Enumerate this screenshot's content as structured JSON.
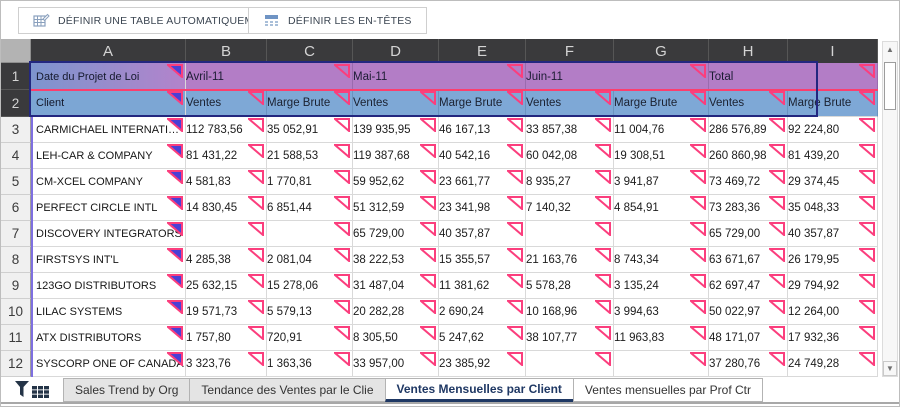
{
  "toolbar": {
    "define_table_label": "DÉFINIR UNE TABLE AUTOMATIQUEMENT",
    "define_headers_label": "DÉFINIR LES EN-TÊTES"
  },
  "sheet": {
    "column_letters": [
      "A",
      "B",
      "C",
      "D",
      "E",
      "F",
      "G",
      "H",
      "I"
    ],
    "row_numbers": [
      "1",
      "2",
      "3",
      "4",
      "5",
      "6",
      "7",
      "8",
      "9",
      "10",
      "11",
      "12"
    ],
    "header_row_1": {
      "a": "Date du Projet de Loi",
      "groups": [
        "Avril-11",
        "Mai-11",
        "Juin-11",
        "Total"
      ]
    },
    "header_row_2": {
      "a": "Client",
      "cols": [
        "Ventes",
        "Marge Brute",
        "Ventes",
        "Marge Brute",
        "Ventes",
        "Marge Brute",
        "Ventes",
        "Marge Brute"
      ]
    },
    "data_rows": [
      {
        "name": "CARMICHAEL INTERNATI…",
        "values": [
          "112 783,56",
          "35 052,91",
          "139 935,95",
          "46 167,13",
          "33 857,38",
          "11 004,76",
          "286 576,89",
          "92 224,80"
        ]
      },
      {
        "name": "LEH-CAR & COMPANY",
        "values": [
          "81 431,22",
          "21 588,53",
          "119 387,68",
          "40 542,16",
          "60 042,08",
          "19 308,51",
          "260 860,98",
          "81 439,20"
        ]
      },
      {
        "name": "CM-XCEL COMPANY",
        "values": [
          "4 581,83",
          "1 770,81",
          "59 952,62",
          "23 661,77",
          "8 935,27",
          "3 941,87",
          "73 469,72",
          "29 374,45"
        ]
      },
      {
        "name": "PERFECT CIRCLE INTL",
        "values": [
          "14 830,45",
          "6 851,44",
          "51 312,59",
          "23 341,98",
          "7 140,32",
          "4 854,91",
          "73 283,36",
          "35 048,33"
        ]
      },
      {
        "name": "DISCOVERY INTEGRATORS",
        "values": [
          "",
          "",
          "65 729,00",
          "40 357,87",
          "",
          "",
          "65 729,00",
          "40 357,87"
        ]
      },
      {
        "name": "FIRSTSYS INT'L",
        "values": [
          "4 285,38",
          "2 081,04",
          "38 222,53",
          "15 355,57",
          "21 163,76",
          "8 743,34",
          "63 671,67",
          "26 179,95"
        ]
      },
      {
        "name": "123GO DISTRIBUTORS",
        "values": [
          "25 632,15",
          "15 278,06",
          "31 487,04",
          "11 381,62",
          "5 578,28",
          "3 135,24",
          "62 697,47",
          "29 794,92"
        ]
      },
      {
        "name": "LILAC SYSTEMS",
        "values": [
          "19 571,73",
          "5 579,13",
          "20 282,28",
          "2 690,24",
          "10 168,96",
          "3 994,63",
          "50 022,97",
          "12 264,00"
        ]
      },
      {
        "name": "ATX DISTRIBUTORS",
        "values": [
          "1 757,80",
          "720,91",
          "8 305,50",
          "5 247,62",
          "38 107,77",
          "11 963,83",
          "48 171,07",
          "17 932,36"
        ]
      },
      {
        "name": "SYSCORP ONE OF CANADA",
        "values": [
          "3 323,76",
          "1 363,36",
          "33 957,00",
          "23 385,92",
          "",
          "",
          "37 280,76",
          "24 749,28"
        ]
      }
    ]
  },
  "scrollbar": {
    "up_icon": "▲",
    "down_icon": "▼"
  },
  "tabs": {
    "items": [
      {
        "label": "Sales Trend by Org",
        "active": false,
        "white": false
      },
      {
        "label": "Tendance des Ventes par le Clie",
        "active": false,
        "white": false
      },
      {
        "label": "Ventes Mensuelles par Client",
        "active": true,
        "white": true
      },
      {
        "label": "Ventes mensuelles par Prof Ctr",
        "active": false,
        "white": true
      }
    ]
  },
  "colors": {
    "selection_border": "#23277f",
    "header_separator_pink": "#fb3e6d",
    "comment_flag_pink": "#fb3e7d",
    "comment_flag_indigo": "#4a40d6",
    "month_row_purple": "#b37dc6",
    "metric_row_blue": "#7ea8d6",
    "header_dark_grey": "#3a3a3c",
    "active_tab_navy": "#1f3864"
  }
}
